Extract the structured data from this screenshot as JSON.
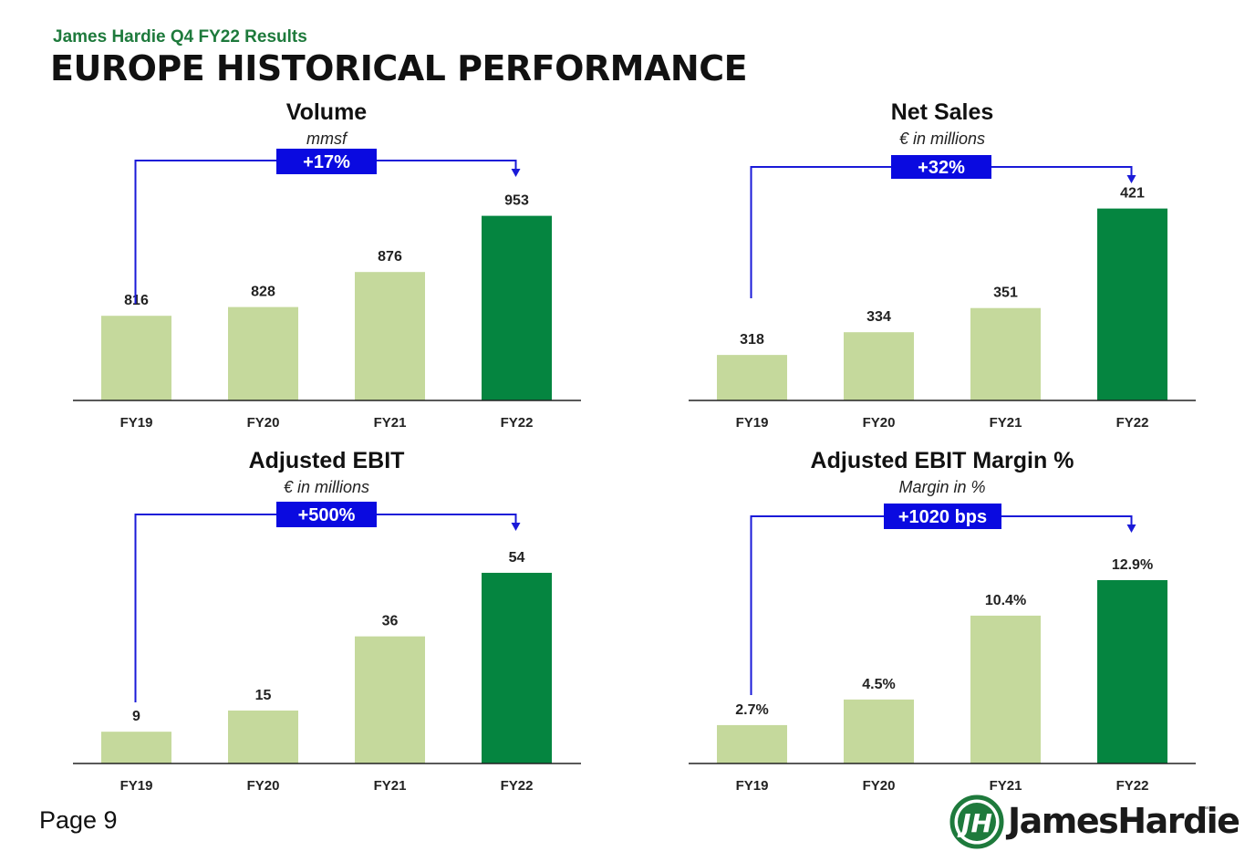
{
  "header": {
    "subtitle": "James Hardie Q4 FY22 Results",
    "title": "EUROPE HISTORICAL PERFORMANCE"
  },
  "footer": {
    "page_label": "Page 9",
    "logo_text": "JamesHardie",
    "logo_tm": "™"
  },
  "colors": {
    "bar_light": "#c5d99c",
    "bar_dark": "#058540",
    "badge_bg": "#0a0ae0",
    "bracket": "#1a1ad8",
    "axis": "#222222",
    "brand_green": "#1e7a3c"
  },
  "chart_data": [
    {
      "type": "bar",
      "title": "Volume",
      "subtitle": "mmsf",
      "categories": [
        "FY19",
        "FY20",
        "FY21",
        "FY22"
      ],
      "values": [
        816,
        828,
        876,
        953
      ],
      "labels": [
        "816",
        "828",
        "876",
        "953"
      ],
      "change_label": "+17%",
      "ylim": [
        700,
        1000
      ]
    },
    {
      "type": "bar",
      "title": "Net Sales",
      "subtitle": "€ in millions",
      "categories": [
        "FY19",
        "FY20",
        "FY21",
        "FY22"
      ],
      "values": [
        318,
        334,
        351,
        421
      ],
      "labels": [
        "318",
        "334",
        "351",
        "421"
      ],
      "change_label": "+32%",
      "ylim": [
        286,
        440
      ]
    },
    {
      "type": "bar",
      "title": "Adjusted EBIT",
      "subtitle": "€ in millions",
      "categories": [
        "FY19",
        "FY20",
        "FY21",
        "FY22"
      ],
      "values": [
        9,
        15,
        36,
        54
      ],
      "labels": [
        "9",
        "15",
        "36",
        "54"
      ],
      "change_label": "+500%",
      "ylim": [
        0,
        62
      ]
    },
    {
      "type": "bar",
      "title": "Adjusted EBIT Margin %",
      "subtitle": "Margin in %",
      "categories": [
        "FY19",
        "FY20",
        "FY21",
        "FY22"
      ],
      "values": [
        2.7,
        4.5,
        10.4,
        12.9
      ],
      "labels": [
        "2.7%",
        "4.5%",
        "10.4%",
        "12.9%"
      ],
      "change_label": "+1020 bps",
      "ylim": [
        0,
        15.4
      ]
    }
  ]
}
